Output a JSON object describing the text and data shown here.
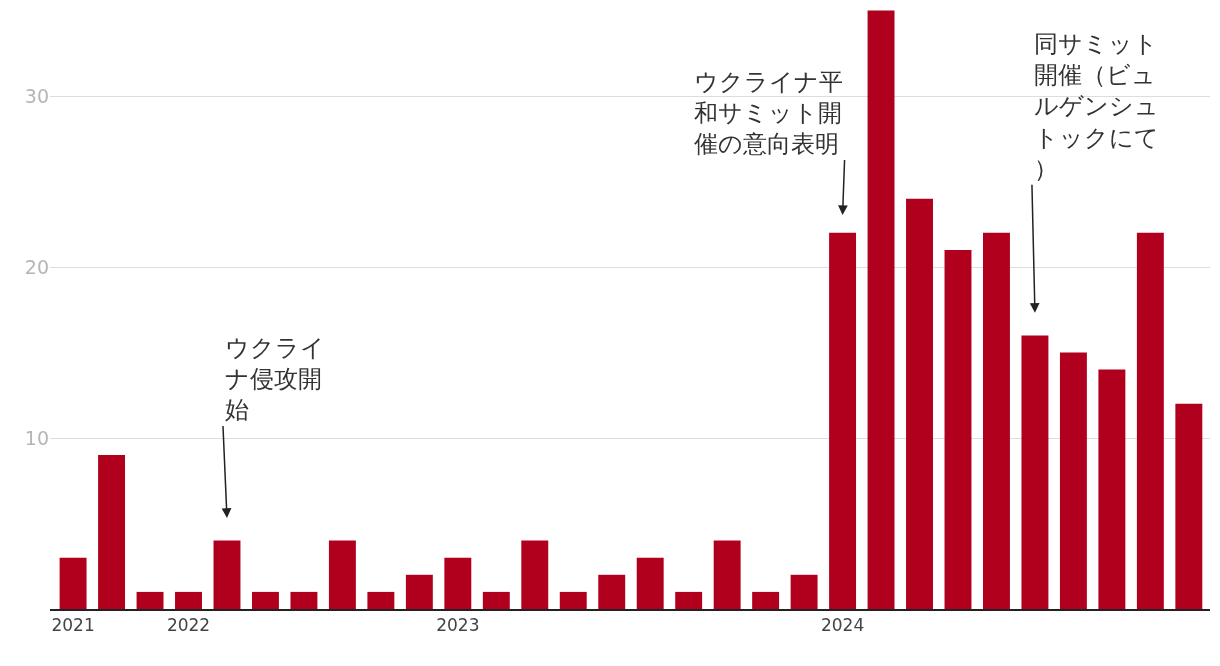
{
  "chart_data": {
    "type": "bar",
    "categories": [
      "2021",
      null,
      null,
      "2022",
      null,
      null,
      null,
      null,
      null,
      null,
      "2023",
      null,
      null,
      null,
      null,
      null,
      null,
      null,
      null,
      null,
      "2024",
      null,
      null,
      null,
      null,
      null,
      null,
      null,
      null,
      null
    ],
    "values": [
      3,
      9,
      1,
      1,
      4,
      1,
      1,
      4,
      1,
      2,
      3,
      1,
      4,
      1,
      2,
      3,
      1,
      4,
      1,
      2,
      22,
      35,
      24,
      21,
      22,
      16,
      15,
      14,
      22,
      12
    ],
    "color": "#b0001e",
    "ylim": [
      0,
      35.5
    ],
    "yticks": [
      10,
      20,
      30
    ],
    "grid": "y",
    "annotations": [
      "ウクライナ侵攻開始",
      "ウクライナ平和サミット開催の意向表明",
      "同サミット開催（ビュルゲンシュトックにて）"
    ]
  }
}
